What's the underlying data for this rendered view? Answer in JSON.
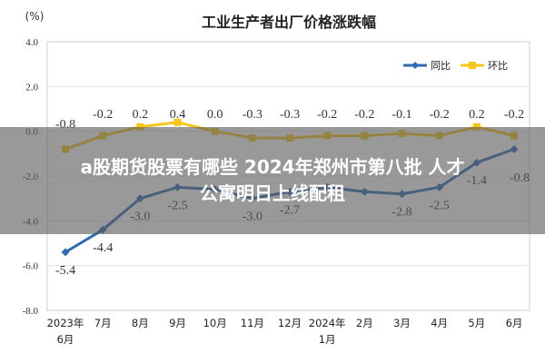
{
  "chart_data": {
    "type": "line",
    "title": "工业生产者出厂价格涨跌幅",
    "unit_label": "(%)",
    "categories": [
      "2023年6月",
      "7月",
      "8月",
      "9月",
      "10月",
      "11月",
      "12月",
      "2024年1月",
      "2月",
      "3月",
      "4月",
      "5月",
      "6月"
    ],
    "category_lines": [
      [
        "2023年",
        "6月"
      ],
      [
        "7月"
      ],
      [
        "8月"
      ],
      [
        "9月"
      ],
      [
        "10月"
      ],
      [
        "11月"
      ],
      [
        "12月"
      ],
      [
        "2024年",
        "1月"
      ],
      [
        "2月"
      ],
      [
        "3月"
      ],
      [
        "4月"
      ],
      [
        "5月"
      ],
      [
        "6月"
      ]
    ],
    "ylim": [
      -8.0,
      4.0
    ],
    "yticks": [
      "4.0",
      "2.0",
      "0.0",
      "-2.0",
      "-4.0",
      "-6.0",
      "-8.0"
    ],
    "grid": true,
    "legend_position": "top-right",
    "series": [
      {
        "name": "同比",
        "color": "#2e6bb5",
        "values": [
          -5.4,
          -4.4,
          -3.0,
          -2.5,
          -2.6,
          -3.0,
          -2.7,
          -2.5,
          -2.7,
          -2.8,
          -2.5,
          -1.4,
          -0.8
        ],
        "labels": [
          "-5.4",
          "-4.4",
          "-3.0",
          "-2.5",
          "",
          "-3.0",
          "-2.7",
          "",
          "",
          "-2.8",
          "-2.5",
          "-1.4",
          "-0.8"
        ]
      },
      {
        "name": "环比",
        "color": "#f5c518",
        "values": [
          -0.8,
          -0.2,
          0.2,
          0.4,
          0.0,
          -0.3,
          -0.3,
          -0.2,
          -0.2,
          -0.1,
          -0.2,
          0.2,
          -0.2
        ],
        "labels": [
          "-0.8",
          "-0.2",
          "0.2",
          "0.4",
          "0.0",
          "-0.3",
          "-0.3",
          "-0.2",
          "-0.2",
          "-0.1",
          "-0.2",
          "0.2",
          "-0.2"
        ]
      }
    ]
  },
  "overlay": {
    "line1": "a股期货股票有哪些 2024年郑州市第八批 人才",
    "line2": "公寓明日上线配租"
  }
}
